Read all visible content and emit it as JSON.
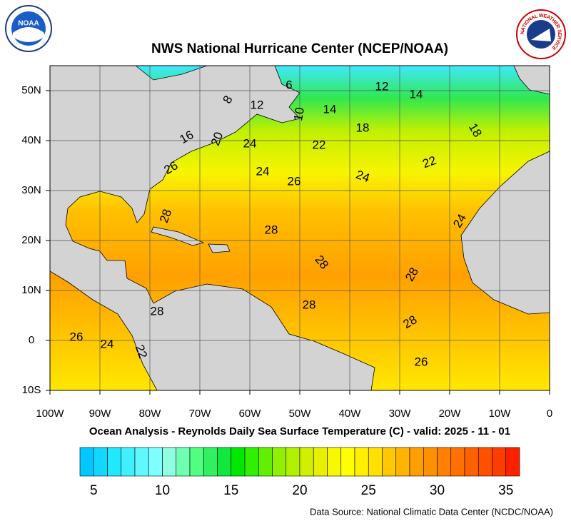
{
  "header": {
    "title": "NWS National Hurricane Center (NCEP/NOAA)",
    "logo_left": "NOAA",
    "logo_right": "NATIONAL WEATHER SERVICE"
  },
  "map": {
    "xlim": [
      -100,
      0
    ],
    "ylim": [
      -10,
      55
    ],
    "xticks": [
      {
        "value": -100,
        "label": "100W"
      },
      {
        "value": -90,
        "label": "90W"
      },
      {
        "value": -80,
        "label": "80W"
      },
      {
        "value": -70,
        "label": "70W"
      },
      {
        "value": -60,
        "label": "60W"
      },
      {
        "value": -50,
        "label": "50W"
      },
      {
        "value": -40,
        "label": "40W"
      },
      {
        "value": -30,
        "label": "30W"
      },
      {
        "value": -20,
        "label": "20W"
      },
      {
        "value": -10,
        "label": "10W"
      },
      0
    ],
    "yticks": [
      {
        "value": 50,
        "label": "50N"
      },
      {
        "value": 40,
        "label": "40N"
      },
      {
        "value": 30,
        "label": "30N"
      },
      {
        "value": 20,
        "label": "20N"
      },
      {
        "value": 10,
        "label": "10N"
      },
      0,
      {
        "value": -10,
        "label": "10S"
      }
    ],
    "grid": true,
    "contour_labels": [
      6,
      12,
      14,
      12,
      8,
      10,
      14,
      18,
      18,
      16,
      20,
      24,
      22,
      22,
      26,
      24,
      26,
      24,
      24,
      28,
      28,
      28,
      28,
      28,
      28,
      28,
      26,
      24,
      22,
      26
    ]
  },
  "subtitle": "Ocean Analysis - Reynolds Daily Sea Surface Temperature (C) - valid: 2025 - 11 - 01",
  "colorbar": {
    "range": [
      4,
      36
    ],
    "ticks": [
      5,
      10,
      15,
      20,
      25,
      30,
      35
    ],
    "colors": [
      "#00c8ff",
      "#10d8ff",
      "#20e8ff",
      "#40f0ff",
      "#60f8ff",
      "#80ffff",
      "#90ffe0",
      "#70ffb0",
      "#50ff80",
      "#30f060",
      "#10e840",
      "#00e800",
      "#30f000",
      "#60f000",
      "#90f000",
      "#b0f000",
      "#d0f000",
      "#e8f000",
      "#f8f800",
      "#ffff00",
      "#fff000",
      "#ffe000",
      "#ffc800",
      "#ffb400",
      "#ffa000",
      "#ff9000",
      "#ff8000",
      "#ff7000",
      "#ff6000",
      "#ff5000",
      "#ff3c00",
      "#ff2000"
    ]
  },
  "source": "Data Source: National Climatic Data Center (NCDC/NOAA)"
}
